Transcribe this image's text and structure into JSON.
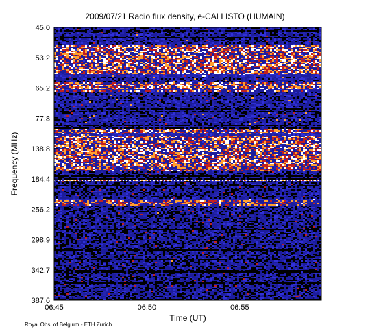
{
  "chart_data": {
    "type": "heatmap",
    "title": "2009/07/21  Radio flux density, e-CALLISTO (HUMAIN)",
    "xlabel": "Time (UT)",
    "ylabel": "Frequency (MHz)",
    "x_ticks": [
      "06:45",
      "06:50",
      "06:55"
    ],
    "y_ticks": [
      "45.0",
      "53.2",
      "65.2",
      "77.8",
      "138.8",
      "184.4",
      "256.2",
      "298.9",
      "342.7",
      "387.6"
    ],
    "x_range": [
      "06:45",
      "06:59"
    ],
    "y_range": [
      45.0,
      387.6
    ],
    "y_axis": "frequency increases downward",
    "colormap": [
      "#000000",
      "#1c1c9c",
      "#3030d8",
      "#c02020",
      "#ffa030",
      "#ffffff"
    ],
    "bright_bands_mhz": [
      [
        50,
        60
      ],
      [
        63,
        66
      ],
      [
        100,
        170
      ],
      [
        184.4,
        185
      ],
      [
        230,
        245
      ]
    ],
    "footer": "Royal Obs. of Belgium - ETH Zurich"
  }
}
